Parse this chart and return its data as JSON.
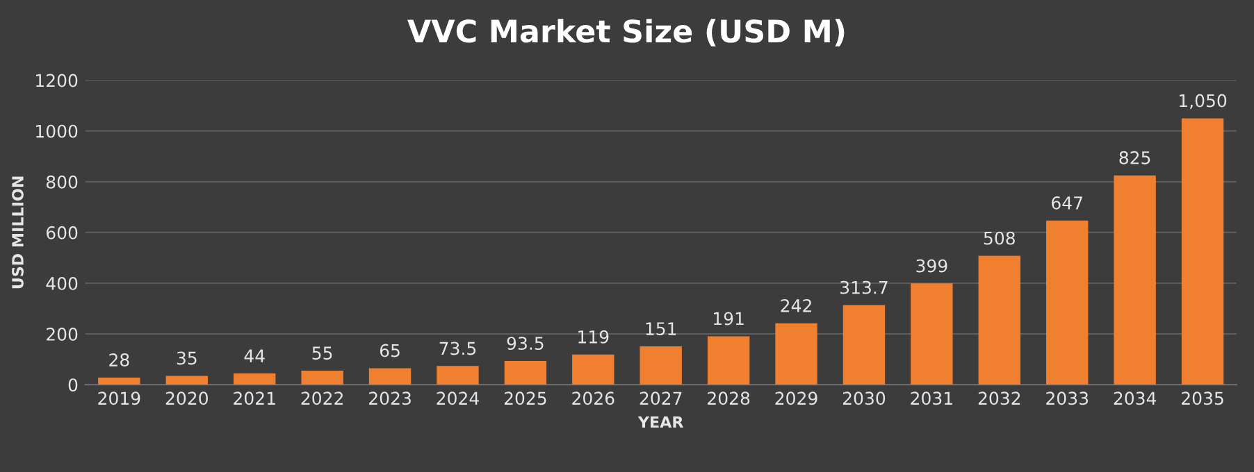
{
  "chart_data": {
    "type": "bar",
    "title": "VVC Market Size (USD M)",
    "xlabel": "YEAR",
    "ylabel": "USD MILLION",
    "categories": [
      "2019",
      "2020",
      "2021",
      "2022",
      "2023",
      "2024",
      "2025",
      "2026",
      "2027",
      "2028",
      "2029",
      "2030",
      "2031",
      "2032",
      "2033",
      "2034",
      "2035"
    ],
    "values": [
      28,
      35,
      44,
      55,
      65,
      73.5,
      93.5,
      119,
      151,
      191,
      242,
      313.7,
      399,
      508,
      647,
      825,
      1050
    ],
    "value_labels": [
      "28",
      "35",
      "44",
      "55",
      "65",
      "73.5",
      "93.5",
      "119",
      "151",
      "191",
      "242",
      "313.7",
      "399",
      "508",
      "647",
      "825",
      "1,050"
    ],
    "color": "#f07f2f",
    "ylim": [
      0,
      1200
    ],
    "yticks": [
      0,
      200,
      400,
      600,
      800,
      1000,
      1200
    ],
    "grid": "y",
    "legend": false
  }
}
